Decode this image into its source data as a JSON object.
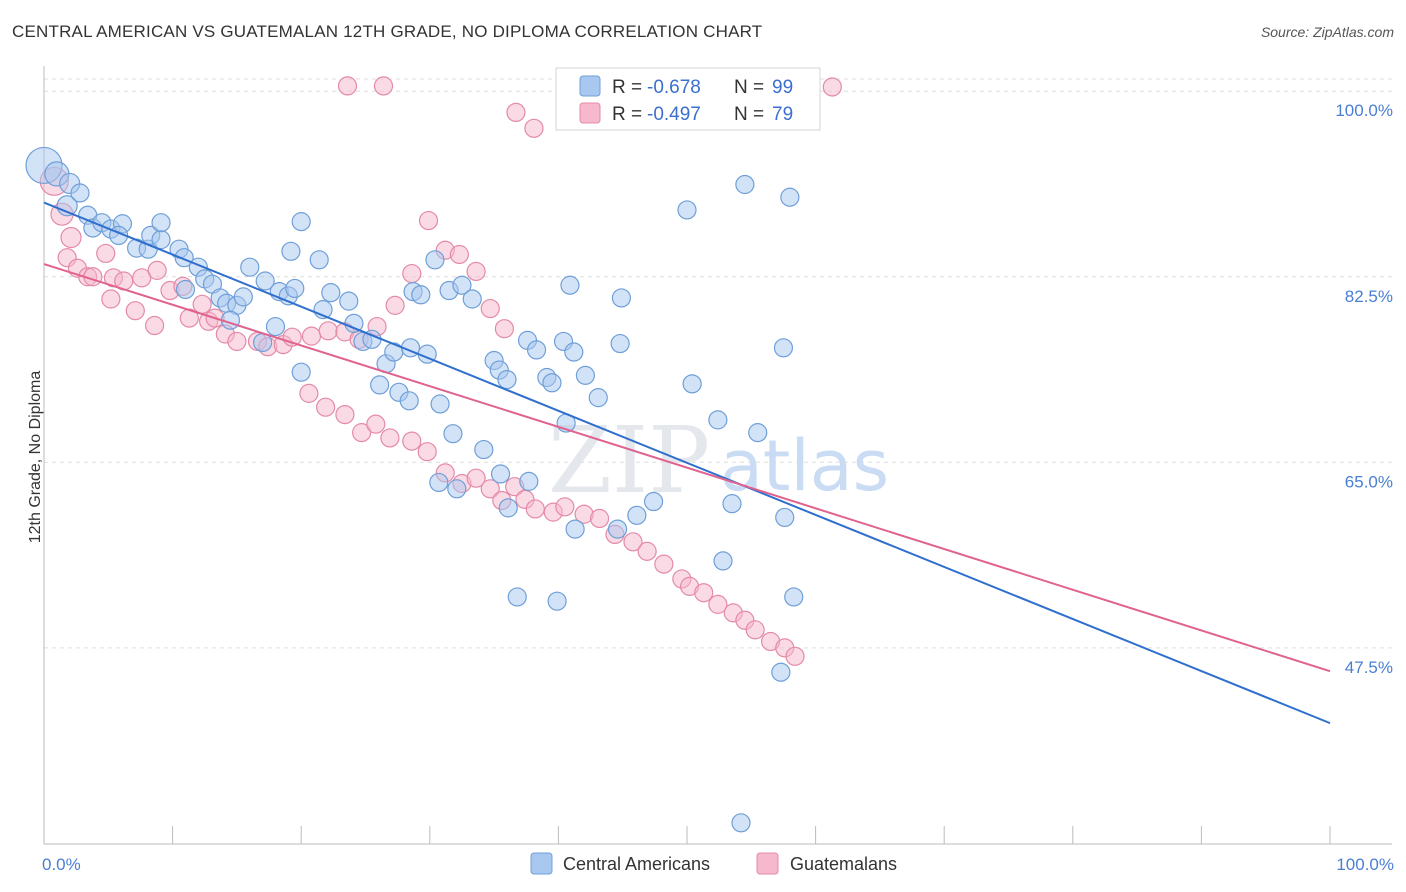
{
  "title": "CENTRAL AMERICAN VS GUATEMALAN 12TH GRADE, NO DIPLOMA CORRELATION CHART",
  "source": "Source: ZipAtlas.com",
  "watermark": {
    "part1": "ZIP",
    "part2": "atlas"
  },
  "colors": {
    "blue_fill": "#a8c8f0",
    "blue_stroke": "#6f9fd8",
    "blue_line": "#2f6fce",
    "pink_fill": "#f5b8cc",
    "pink_stroke": "#e48aa8",
    "pink_line": "#e0628f",
    "grid": "#dddddd",
    "tick_text": "#4a7fd4"
  },
  "legend": {
    "r_label": "R =",
    "n_label": "N =",
    "blue": {
      "r": "-0.678",
      "n": "99"
    },
    "pink": {
      "r": "-0.497",
      "n": "79"
    }
  },
  "chart_data": {
    "type": "scatter",
    "xlabel": "",
    "ylabel": "12th Grade, No Diploma",
    "xlim": [
      0,
      100
    ],
    "ylim": [
      29,
      102
    ],
    "x_tick_labels": {
      "left": "0.0%",
      "right": "100.0%"
    },
    "y_ticks": [
      {
        "value": 100,
        "label": "100.0%"
      },
      {
        "value": 82.5,
        "label": "82.5%"
      },
      {
        "value": 65,
        "label": "65.0%"
      },
      {
        "value": 47.5,
        "label": "47.5%"
      }
    ],
    "grid": true,
    "legend_placement": "top-center",
    "series": [
      {
        "name": "Central Americans",
        "color": "blue",
        "trend": {
          "x": [
            0,
            100
          ],
          "y": [
            89.5,
            40.4
          ]
        },
        "points": [
          [
            0,
            93,
            18
          ],
          [
            1,
            92.2,
            12
          ],
          [
            2,
            91.3,
            10
          ],
          [
            1.8,
            89.2,
            10
          ],
          [
            2.8,
            90.4,
            9
          ],
          [
            3.4,
            88.3,
            9
          ],
          [
            3.8,
            87.1,
            9
          ],
          [
            4.5,
            87.6,
            9
          ],
          [
            5.2,
            87,
            9
          ],
          [
            6.1,
            87.5,
            9
          ],
          [
            5.8,
            86.4,
            9
          ],
          [
            7.2,
            85.2,
            9
          ],
          [
            8.1,
            85.1,
            9
          ],
          [
            8.3,
            86.4,
            9
          ],
          [
            9.1,
            86,
            9
          ],
          [
            9.1,
            87.6,
            9
          ],
          [
            10.5,
            85.1,
            9
          ],
          [
            10.9,
            84.3,
            9
          ],
          [
            12,
            83.4,
            9
          ],
          [
            11,
            81.3,
            9
          ],
          [
            12.5,
            82.3,
            9
          ],
          [
            13.1,
            81.8,
            9
          ],
          [
            13.7,
            80.5,
            9
          ],
          [
            14.2,
            80,
            9
          ],
          [
            15,
            79.8,
            9
          ],
          [
            16,
            83.4,
            9
          ],
          [
            17.2,
            82.1,
            9
          ],
          [
            15.5,
            80.6,
            9
          ],
          [
            18.3,
            81.1,
            9
          ],
          [
            19,
            80.7,
            9
          ],
          [
            19.5,
            81.4,
            9
          ],
          [
            19.2,
            84.9,
            9
          ],
          [
            20,
            87.7,
            9
          ],
          [
            21.4,
            84.1,
            9
          ],
          [
            21.7,
            79.4,
            9
          ],
          [
            22.3,
            81,
            9
          ],
          [
            23.7,
            80.2,
            9
          ],
          [
            14.5,
            78.4,
            9
          ],
          [
            18,
            77.8,
            9
          ],
          [
            17,
            76.3,
            9
          ],
          [
            20,
            73.5,
            9
          ],
          [
            24.1,
            78.1,
            9
          ],
          [
            24.8,
            76.4,
            9
          ],
          [
            25.5,
            76.6,
            9
          ],
          [
            26.6,
            74.3,
            9
          ],
          [
            26.1,
            72.3,
            9
          ],
          [
            27.2,
            75.4,
            9
          ],
          [
            27.6,
            71.6,
            9
          ],
          [
            28.5,
            75.8,
            9
          ],
          [
            28.7,
            81.1,
            9
          ],
          [
            29.3,
            80.8,
            9
          ],
          [
            28.4,
            70.8,
            9
          ],
          [
            29.8,
            75.2,
            9
          ],
          [
            30.8,
            70.5,
            9
          ],
          [
            31.5,
            81.2,
            9
          ],
          [
            30.4,
            84.1,
            9
          ],
          [
            32.5,
            81.7,
            9
          ],
          [
            33.3,
            80.4,
            9
          ],
          [
            35,
            74.6,
            9
          ],
          [
            35.4,
            73.7,
            9
          ],
          [
            36,
            72.8,
            9
          ],
          [
            37.6,
            76.5,
            9
          ],
          [
            38.3,
            75.6,
            9
          ],
          [
            39.1,
            73,
            9
          ],
          [
            39.5,
            72.5,
            9
          ],
          [
            40.4,
            76.4,
            9
          ],
          [
            41.2,
            75.4,
            9
          ],
          [
            40.9,
            81.7,
            9
          ],
          [
            42.1,
            73.2,
            9
          ],
          [
            43.1,
            71.1,
            9
          ],
          [
            44.8,
            76.2,
            9
          ],
          [
            44.9,
            80.5,
            9
          ],
          [
            31.8,
            67.7,
            9
          ],
          [
            32.1,
            62.5,
            9
          ],
          [
            34.2,
            66.2,
            9
          ],
          [
            35.5,
            63.9,
            9
          ],
          [
            36.1,
            60.7,
            9
          ],
          [
            30.7,
            63.1,
            9
          ],
          [
            37.7,
            63.2,
            9
          ],
          [
            40.6,
            68.7,
            9
          ],
          [
            44.6,
            58.7,
            9
          ],
          [
            41.3,
            58.7,
            9
          ],
          [
            46.1,
            60,
            9
          ],
          [
            47.4,
            61.3,
            9
          ],
          [
            36.8,
            52.3,
            9
          ],
          [
            39.9,
            51.9,
            9
          ],
          [
            50.4,
            72.4,
            9
          ],
          [
            52.4,
            69,
            9
          ],
          [
            53.5,
            61.1,
            9
          ],
          [
            52.8,
            55.7,
            9
          ],
          [
            54.5,
            91.2,
            9
          ],
          [
            58,
            90,
            9
          ],
          [
            57.5,
            75.8,
            9
          ],
          [
            55.5,
            67.8,
            9
          ],
          [
            57.6,
            59.8,
            9
          ],
          [
            58.3,
            52.3,
            9
          ],
          [
            57.3,
            45.2,
            9
          ],
          [
            54.2,
            31,
            9
          ],
          [
            50,
            88.8,
            9
          ]
        ]
      },
      {
        "name": "Guatemalans",
        "color": "pink",
        "trend": {
          "x": [
            0,
            100
          ],
          "y": [
            83.7,
            45.3
          ]
        },
        "points": [
          [
            0.8,
            91.5,
            14
          ],
          [
            1.4,
            88.4,
            11
          ],
          [
            2.1,
            86.2,
            10
          ],
          [
            1.8,
            84.3,
            9
          ],
          [
            2.6,
            83.3,
            9
          ],
          [
            3.4,
            82.5,
            9
          ],
          [
            3.8,
            82.5,
            9
          ],
          [
            4.8,
            84.7,
            9
          ],
          [
            5.4,
            82.4,
            9
          ],
          [
            6.2,
            82.1,
            9
          ],
          [
            7.6,
            82.4,
            9
          ],
          [
            8.8,
            83.1,
            9
          ],
          [
            9.8,
            81.2,
            9
          ],
          [
            10.8,
            81.6,
            9
          ],
          [
            5.2,
            80.4,
            9
          ],
          [
            7.1,
            79.3,
            9
          ],
          [
            8.6,
            77.9,
            9
          ],
          [
            11.3,
            78.6,
            9
          ],
          [
            12.3,
            79.9,
            9
          ],
          [
            12.8,
            78.3,
            9
          ],
          [
            13.3,
            78.6,
            9
          ],
          [
            14.1,
            77.1,
            9
          ],
          [
            15,
            76.4,
            9
          ],
          [
            16.6,
            76.4,
            9
          ],
          [
            17.4,
            75.9,
            9
          ],
          [
            18.6,
            76.1,
            9
          ],
          [
            19.3,
            76.8,
            9
          ],
          [
            20.8,
            76.9,
            9
          ],
          [
            22.1,
            77.4,
            9
          ],
          [
            23.4,
            77.3,
            9
          ],
          [
            24.5,
            76.6,
            9
          ],
          [
            25.9,
            77.8,
            9
          ],
          [
            27.3,
            79.8,
            9
          ],
          [
            28.6,
            82.8,
            9
          ],
          [
            29.9,
            87.8,
            9
          ],
          [
            31.2,
            85,
            9
          ],
          [
            32.3,
            84.6,
            9
          ],
          [
            33.6,
            83,
            9
          ],
          [
            34.7,
            79.5,
            9
          ],
          [
            35.8,
            77.6,
            9
          ],
          [
            20.6,
            71.5,
            9
          ],
          [
            21.9,
            70.2,
            9
          ],
          [
            23.4,
            69.5,
            9
          ],
          [
            24.7,
            67.8,
            9
          ],
          [
            25.8,
            68.6,
            9
          ],
          [
            26.9,
            67.3,
            9
          ],
          [
            28.6,
            67,
            9
          ],
          [
            29.8,
            66,
            9
          ],
          [
            31.2,
            64,
            9
          ],
          [
            32.5,
            63,
            9
          ],
          [
            33.6,
            63.5,
            9
          ],
          [
            34.7,
            62.5,
            9
          ],
          [
            35.6,
            61.4,
            9
          ],
          [
            36.6,
            62.7,
            9
          ],
          [
            37.4,
            61.5,
            9
          ],
          [
            38.2,
            60.6,
            9
          ],
          [
            39.6,
            60.3,
            9
          ],
          [
            40.5,
            60.8,
            9
          ],
          [
            42,
            60.1,
            9
          ],
          [
            43.2,
            59.7,
            9
          ],
          [
            44.4,
            58.2,
            9
          ],
          [
            45.8,
            57.5,
            9
          ],
          [
            46.9,
            56.6,
            9
          ],
          [
            48.2,
            55.4,
            9
          ],
          [
            49.6,
            54,
            9
          ],
          [
            50.2,
            53.3,
            9
          ],
          [
            51.3,
            52.7,
            9
          ],
          [
            52.4,
            51.6,
            9
          ],
          [
            53.6,
            50.8,
            9
          ],
          [
            54.5,
            50.1,
            9
          ],
          [
            55.3,
            49.2,
            9
          ],
          [
            56.5,
            48.1,
            9
          ],
          [
            57.6,
            47.5,
            9
          ],
          [
            58.4,
            46.7,
            9
          ],
          [
            23.6,
            100.5,
            9
          ],
          [
            26.4,
            100.5,
            9
          ],
          [
            36.7,
            98,
            9
          ],
          [
            38.1,
            96.5,
            9
          ],
          [
            61.3,
            100.4,
            9
          ]
        ]
      }
    ]
  },
  "bottom_legend": [
    "Central Americans",
    "Guatemalans"
  ]
}
